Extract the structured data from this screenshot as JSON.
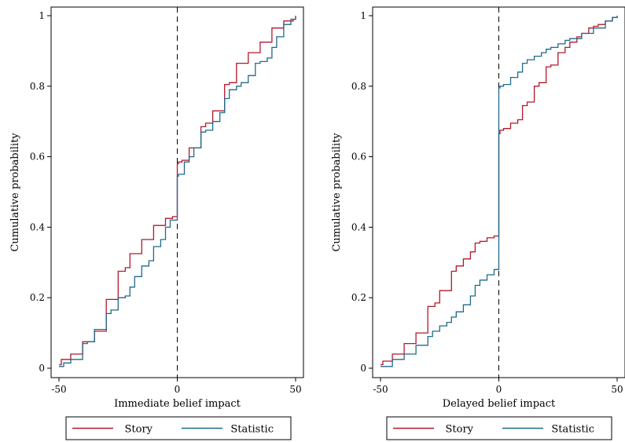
{
  "chart_data": [
    {
      "type": "line",
      "xlabel": "Immediate belief impact",
      "ylabel": "Cumulative probability",
      "xlim": [
        -50,
        50
      ],
      "ylim": [
        0,
        1
      ],
      "xticks": [
        "-50",
        "0",
        "50"
      ],
      "yticks": [
        "0",
        "0.2",
        "0.4",
        "0.6",
        "0.8",
        "1"
      ],
      "grid": false,
      "reference_line": {
        "x": 0,
        "style": "dashed"
      },
      "legend": {
        "position": "bottom",
        "entries": [
          "Story",
          "Statistic"
        ]
      },
      "series": [
        {
          "name": "Story",
          "color": "#b2182b",
          "x": [
            -50,
            -49,
            -45,
            -40,
            -35,
            -30,
            -25,
            -22,
            -20,
            -15,
            -10,
            -5,
            -2,
            -1,
            0,
            0.5,
            2,
            5,
            10,
            12,
            15,
            20,
            22,
            25,
            30,
            35,
            40,
            45,
            49,
            50
          ],
          "y": [
            0.01,
            0.025,
            0.04,
            0.075,
            0.105,
            0.195,
            0.275,
            0.285,
            0.325,
            0.365,
            0.405,
            0.425,
            0.43,
            0.43,
            0.58,
            0.585,
            0.59,
            0.625,
            0.685,
            0.695,
            0.73,
            0.805,
            0.81,
            0.865,
            0.895,
            0.925,
            0.965,
            0.985,
            0.99,
            1.0
          ]
        },
        {
          "name": "Statistic",
          "color": "#1f6a8a",
          "x": [
            -50,
            -48,
            -45,
            -40,
            -38,
            -35,
            -30,
            -28,
            -25,
            -22,
            -20,
            -18,
            -15,
            -12,
            -10,
            -7,
            -5,
            -3,
            0,
            0.5,
            3,
            5,
            7,
            10,
            12,
            15,
            18,
            20,
            22,
            25,
            27,
            30,
            33,
            35,
            38,
            40,
            42,
            45,
            48,
            50
          ],
          "y": [
            0.005,
            0.015,
            0.025,
            0.07,
            0.075,
            0.11,
            0.155,
            0.165,
            0.2,
            0.205,
            0.23,
            0.26,
            0.29,
            0.305,
            0.345,
            0.365,
            0.4,
            0.42,
            0.545,
            0.55,
            0.585,
            0.6,
            0.625,
            0.67,
            0.675,
            0.7,
            0.725,
            0.765,
            0.79,
            0.8,
            0.81,
            0.83,
            0.865,
            0.87,
            0.88,
            0.91,
            0.94,
            0.975,
            0.99,
            0.995
          ]
        }
      ]
    },
    {
      "type": "line",
      "xlabel": "Delayed belief impact",
      "ylabel": "Cumulative probability",
      "xlim": [
        -50,
        50
      ],
      "ylim": [
        0,
        1
      ],
      "xticks": [
        "-50",
        "0",
        "50"
      ],
      "yticks": [
        "0",
        "0.2",
        "0.4",
        "0.6",
        "0.8",
        "1"
      ],
      "grid": false,
      "reference_line": {
        "x": 0,
        "style": "dashed"
      },
      "legend": {
        "position": "bottom",
        "entries": [
          "Story",
          "Statistic"
        ]
      },
      "series": [
        {
          "name": "Story",
          "color": "#b2182b",
          "x": [
            -50,
            -49,
            -45,
            -40,
            -35,
            -30,
            -27,
            -25,
            -20,
            -18,
            -15,
            -12,
            -10,
            -8,
            -5,
            -2,
            0,
            0.5,
            2,
            5,
            8,
            10,
            12,
            15,
            17,
            20,
            22,
            25,
            28,
            30,
            33,
            35,
            38,
            40,
            42,
            45,
            48,
            50
          ],
          "y": [
            0.01,
            0.02,
            0.04,
            0.07,
            0.1,
            0.175,
            0.185,
            0.22,
            0.275,
            0.29,
            0.31,
            0.33,
            0.355,
            0.36,
            0.37,
            0.375,
            0.665,
            0.675,
            0.68,
            0.695,
            0.705,
            0.745,
            0.755,
            0.8,
            0.81,
            0.855,
            0.86,
            0.895,
            0.91,
            0.925,
            0.94,
            0.95,
            0.965,
            0.97,
            0.975,
            0.985,
            0.995,
            1.0
          ]
        },
        {
          "name": "Statistic",
          "color": "#1f6a8a",
          "x": [
            -50,
            -45,
            -40,
            -35,
            -30,
            -28,
            -25,
            -22,
            -20,
            -18,
            -15,
            -12,
            -10,
            -8,
            -5,
            -2,
            0,
            0.5,
            2,
            5,
            8,
            10,
            12,
            15,
            18,
            20,
            22,
            25,
            28,
            30,
            35,
            40,
            45,
            48,
            50
          ],
          "y": [
            0.005,
            0.025,
            0.04,
            0.065,
            0.09,
            0.105,
            0.12,
            0.13,
            0.145,
            0.16,
            0.18,
            0.205,
            0.235,
            0.25,
            0.265,
            0.28,
            0.795,
            0.8,
            0.805,
            0.825,
            0.84,
            0.865,
            0.875,
            0.885,
            0.895,
            0.905,
            0.91,
            0.92,
            0.93,
            0.935,
            0.95,
            0.965,
            0.985,
            0.995,
            1.0
          ]
        }
      ]
    }
  ]
}
